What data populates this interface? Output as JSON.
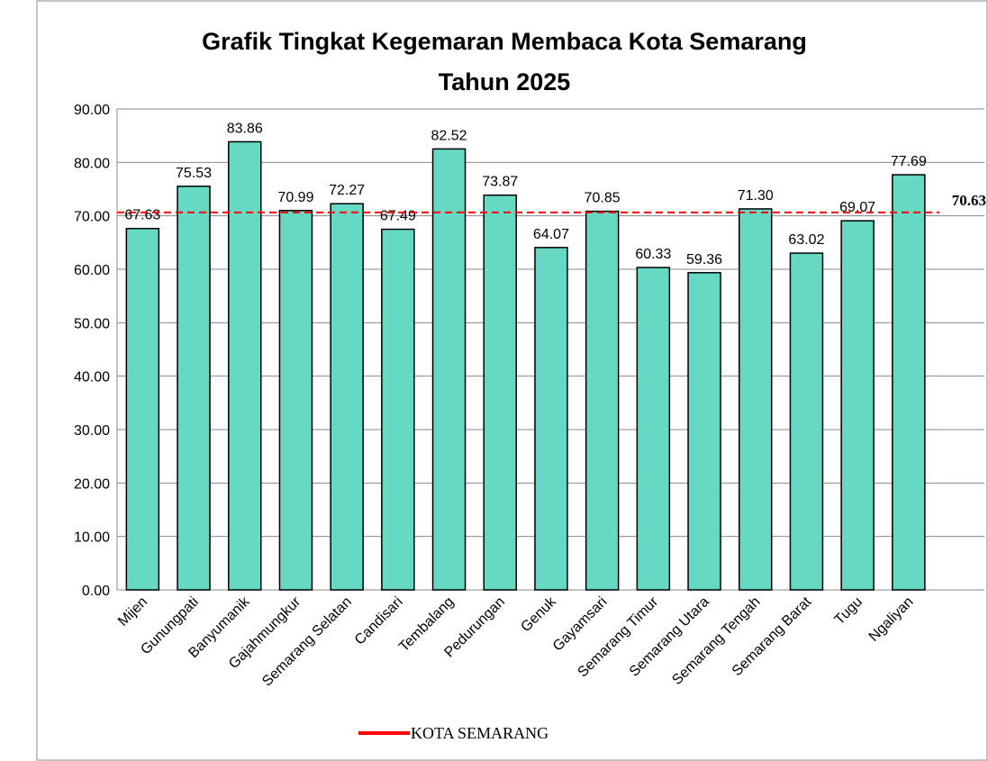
{
  "chart_data": {
    "type": "bar",
    "title": [
      "Grafik Tingkat Kegemaran Membaca Kota Semarang",
      "Tahun 2025"
    ],
    "categories": [
      "Mijen",
      "Gunungpati",
      "Banyumanik",
      "Gajahmungkur",
      "Semarang Selatan",
      "Candisari",
      "Tembalang",
      "Pedurungan",
      "Genuk",
      "Gayamsari",
      "Semarang Timur",
      "Semarang Utara",
      "Semarang Tengah",
      "Semarang Barat",
      "Tugu",
      "Ngaliyan"
    ],
    "values": [
      67.63,
      75.53,
      83.86,
      70.99,
      72.27,
      67.49,
      82.52,
      73.87,
      64.07,
      70.85,
      60.33,
      59.36,
      71.3,
      63.02,
      69.07,
      77.69
    ],
    "value_labels": [
      "67.63",
      "75.53",
      "83.86",
      "70.99",
      "72.27",
      "67.49",
      "82.52",
      "73.87",
      "64.07",
      "70.85",
      "60.33",
      "59.36",
      "71.30",
      "63.02",
      "69.07",
      "77.69"
    ],
    "color": "#66d9c4",
    "reference": {
      "name": "KOTA SEMARANG",
      "value": 70.63,
      "color": "#ff0000"
    },
    "ylim": [
      0,
      90
    ],
    "yticks": [
      {
        "value": 0,
        "label": "0.00"
      },
      {
        "value": 10,
        "label": "10.00"
      },
      {
        "value": 20,
        "label": "20.00"
      },
      {
        "value": 30,
        "label": "30.00"
      },
      {
        "value": 40,
        "label": "40.00"
      },
      {
        "value": 50,
        "label": "50.00"
      },
      {
        "value": 60,
        "label": "60.00"
      },
      {
        "value": 70,
        "label": "70.00"
      },
      {
        "value": 80,
        "label": "80.00"
      },
      {
        "value": 90,
        "label": "90.00"
      }
    ],
    "grid": true,
    "legend": "bottom"
  }
}
